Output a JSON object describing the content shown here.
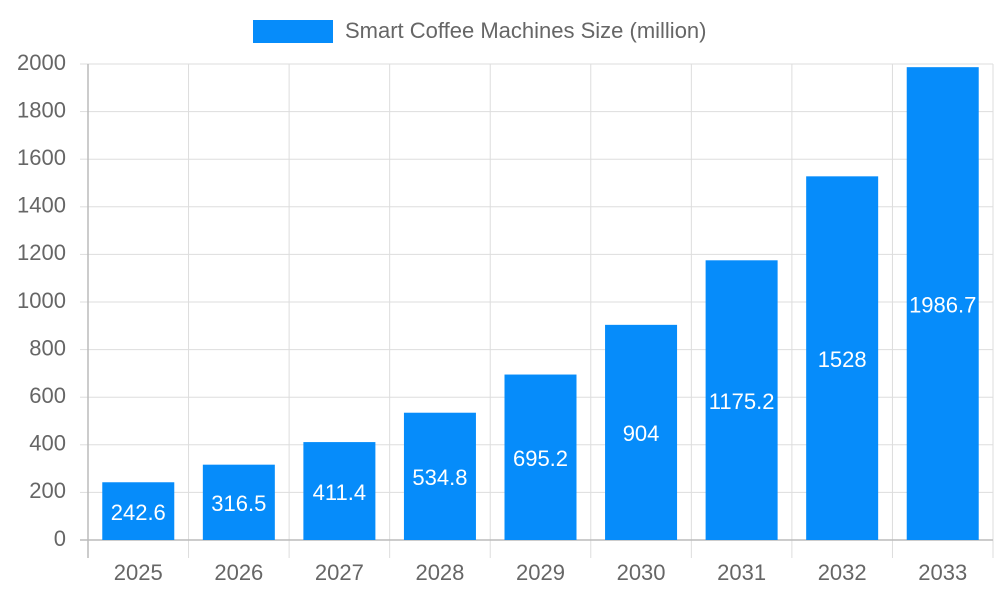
{
  "chart_data": {
    "type": "bar",
    "categories": [
      "2025",
      "2026",
      "2027",
      "2028",
      "2029",
      "2030",
      "2031",
      "2032",
      "2033"
    ],
    "series": [
      {
        "name": "Smart Coffee Machines Size (million)",
        "color": "#068cfa",
        "values": [
          242.6,
          316.5,
          411.4,
          534.8,
          695.2,
          904,
          1175.2,
          1528,
          1986.7
        ]
      }
    ],
    "ylim": [
      0,
      2000
    ],
    "yticks": [
      0,
      200,
      400,
      600,
      800,
      1000,
      1200,
      1400,
      1600,
      1800,
      2000
    ],
    "grid": true,
    "legend": "top",
    "data_labels": true
  }
}
